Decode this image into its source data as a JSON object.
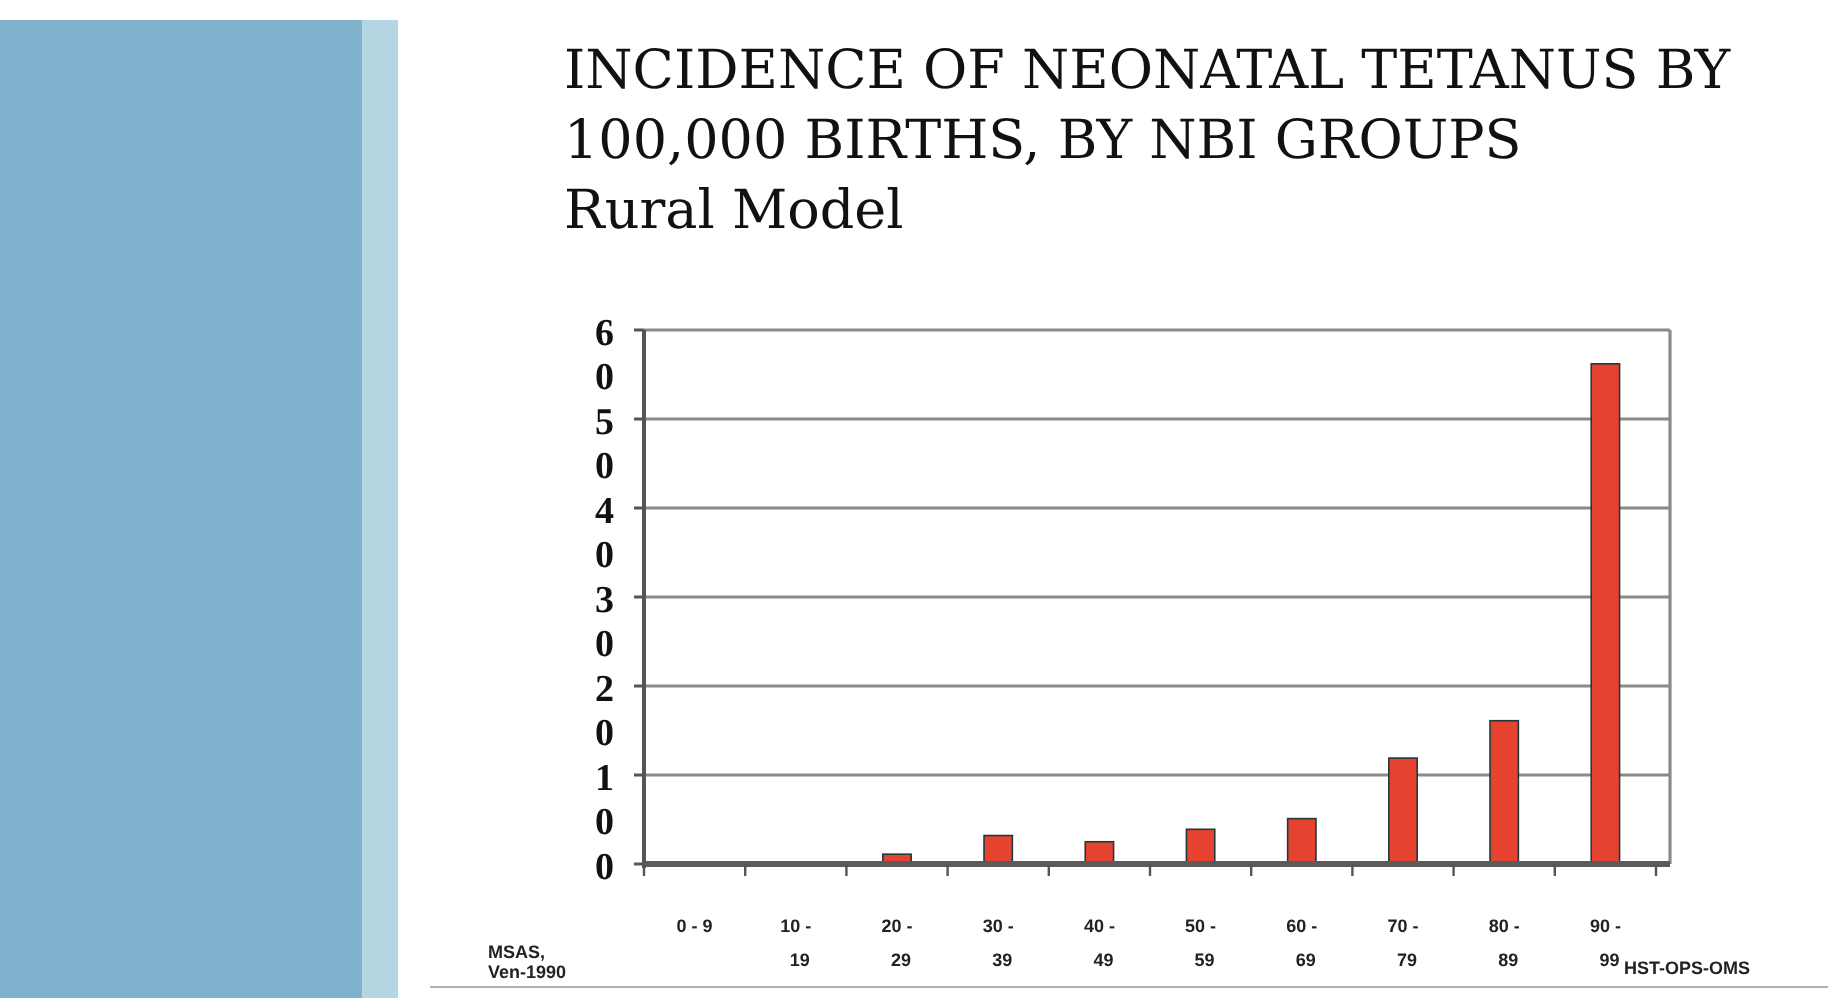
{
  "chart_data": {
    "type": "bar",
    "title": "INCIDENCE OF NEONATAL TETANUS BY 100,000 BIRTHS, BY NBI GROUPS",
    "subtitle": "Rural Model",
    "categories": [
      "0 - 9",
      "10 - 19",
      "20 - 29",
      "30 - 39",
      "40 - 49",
      "50 - 59",
      "60 - 69",
      "70 - 79",
      "80 - 89",
      "90 - 99"
    ],
    "values": [
      0,
      0,
      1.1,
      3.2,
      2.5,
      3.9,
      5.1,
      11.9,
      16.1,
      56.2
    ],
    "color": "#e5432f",
    "ylim": [
      0,
      60
    ],
    "yticks": [
      0,
      10,
      20,
      30,
      40,
      50,
      60
    ],
    "grid": "y",
    "annotations": [
      "MSAS, Ven-1990",
      "HST-OPS-OMS"
    ]
  }
}
